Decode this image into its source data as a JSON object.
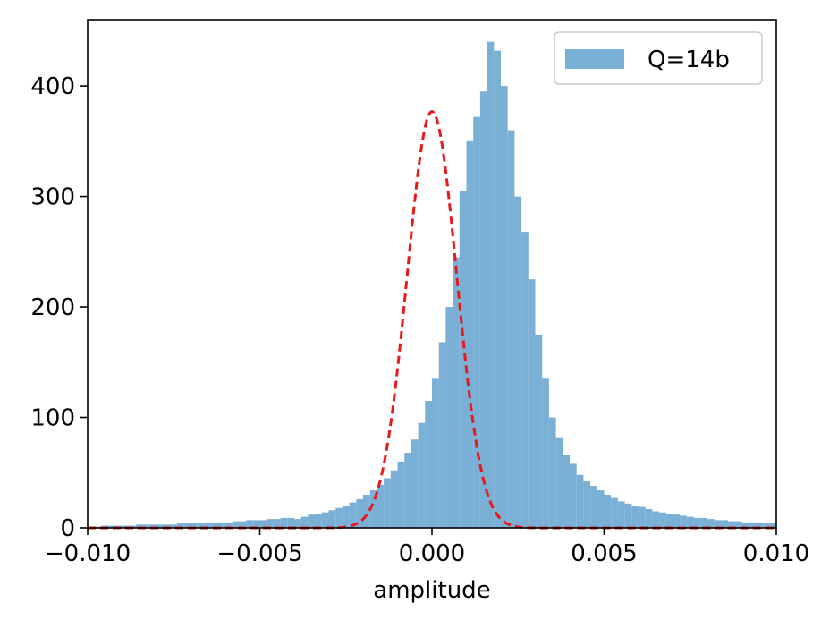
{
  "chart_data": {
    "type": "bar",
    "title": "",
    "xlabel": "amplitude",
    "ylabel": "",
    "xlim": [
      -0.01,
      0.01
    ],
    "ylim": [
      0,
      460
    ],
    "xticks": [
      -0.01,
      -0.005,
      0.0,
      0.005,
      0.01
    ],
    "xtick_labels": [
      "−0.010",
      "−0.005",
      "0.000",
      "0.005",
      "0.010"
    ],
    "yticks": [
      0,
      100,
      200,
      300,
      400
    ],
    "ytick_labels": [
      "0",
      "100",
      "200",
      "300",
      "400"
    ],
    "grid": false,
    "legend_position": "top-right",
    "series": [
      {
        "name": "Q=14b",
        "kind": "histogram",
        "color": "#7aafd6",
        "bin_width": 0.0002,
        "bin_start": -0.01,
        "values": [
          1,
          1,
          2,
          2,
          2,
          2,
          2,
          3,
          3,
          3,
          3,
          3,
          3,
          4,
          4,
          4,
          4,
          5,
          5,
          5,
          5,
          6,
          6,
          7,
          7,
          7,
          8,
          8,
          9,
          9,
          8,
          10,
          12,
          13,
          14,
          16,
          18,
          20,
          23,
          26,
          30,
          34,
          39,
          45,
          52,
          60,
          68,
          80,
          95,
          115,
          135,
          168,
          200,
          245,
          305,
          350,
          372,
          395,
          440,
          432,
          400,
          360,
          300,
          268,
          225,
          175,
          135,
          100,
          82,
          66,
          58,
          48,
          42,
          38,
          34,
          30,
          27,
          24,
          22,
          20,
          19,
          17,
          15,
          14,
          13,
          12,
          11,
          10,
          9,
          9,
          8,
          7,
          7,
          6,
          6,
          5,
          5,
          5,
          4,
          4
        ]
      },
      {
        "name": "",
        "kind": "gaussian_fit",
        "color": "#e8191a",
        "style": "dashed",
        "peak": 377,
        "mean": 0.0,
        "sigma": 0.00072
      }
    ]
  }
}
